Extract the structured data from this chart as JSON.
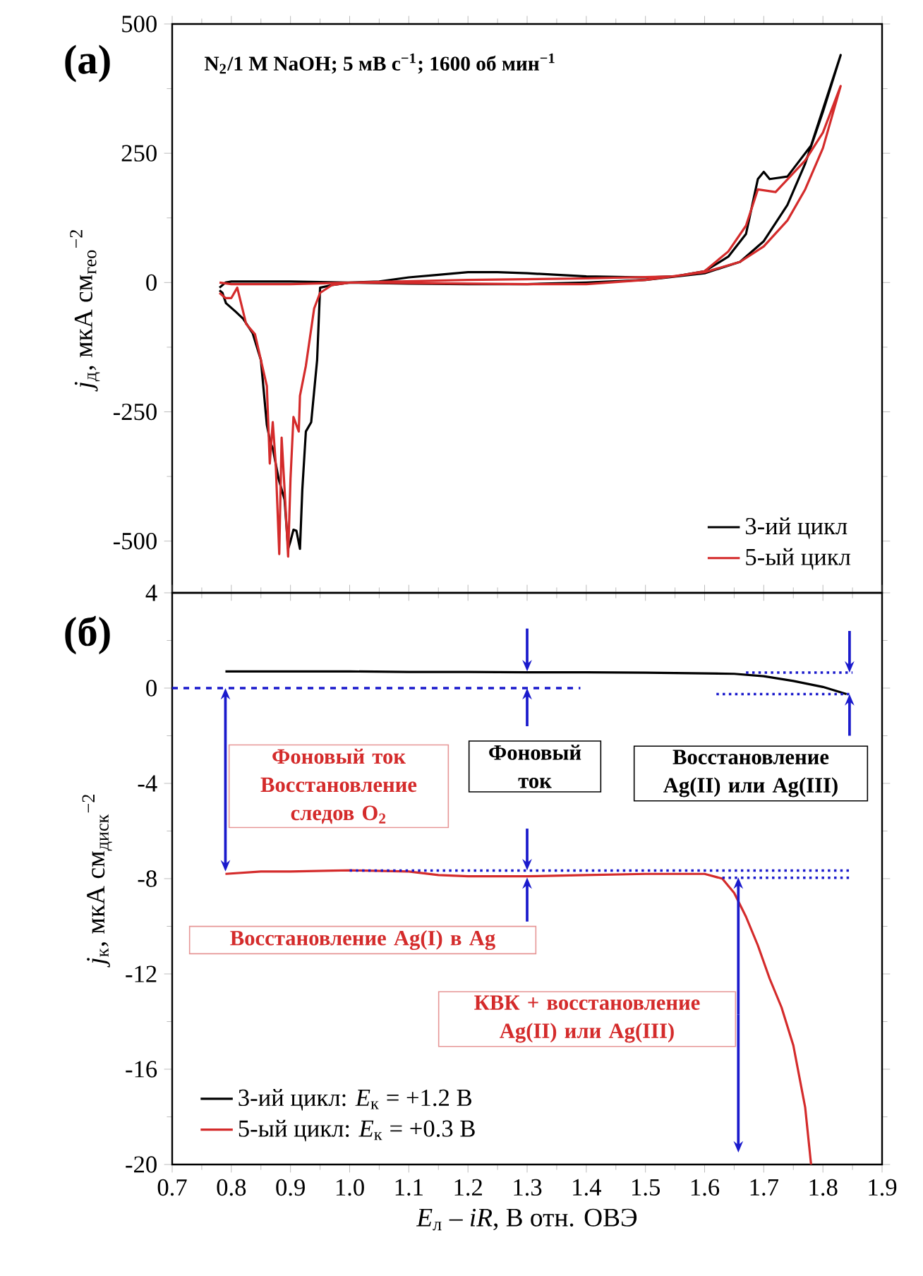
{
  "chart_data": [
    {
      "type": "line",
      "ylabel": "*j*$_{д}$, мкА см$_{гео}$$^{−2}$",
      "xlim": [
        0.7,
        1.9
      ],
      "ylim": [
        -600,
        500
      ],
      "tick_labels": "y",
      "xticks": [
        0.7,
        0.8,
        0.9,
        1.0,
        1.1,
        1.2,
        1.3,
        1.4,
        1.5,
        1.6,
        1.7,
        1.8,
        1.9
      ],
      "yticks": [
        500,
        250,
        0,
        -250,
        -500
      ],
      "legend": "bottom right",
      "annotations": [
        "(a)",
        "N$_{2}$/1 M NaOH; 5 мВ с$^{−1}$; 1600 об мин$^{−1}$"
      ],
      "series": [
        {
          "name": "3-ий цикл",
          "color": "#000000",
          "x": [
            0.78,
            0.79,
            0.8,
            0.9,
            1.0,
            1.05,
            1.1,
            1.15,
            1.2,
            1.25,
            1.3,
            1.35,
            1.4,
            1.5,
            1.55,
            1.6,
            1.64,
            1.67,
            1.69,
            1.7,
            1.71,
            1.74,
            1.78,
            1.83,
            1.8,
            1.77,
            1.74,
            1.7,
            1.66,
            1.6,
            1.5,
            1.4,
            1.3,
            1.2,
            1.1,
            1.0,
            0.97,
            0.95,
            0.945,
            0.935,
            0.926,
            0.92,
            0.916,
            0.91,
            0.905,
            0.9,
            0.896,
            0.89,
            0.88,
            0.87,
            0.866,
            0.86,
            0.85,
            0.836,
            0.82,
            0.807,
            0.791,
            0.785,
            0.78
          ],
          "values": [
            -10,
            0,
            2,
            2,
            0,
            2,
            10,
            15,
            20,
            20,
            18,
            15,
            12,
            10,
            12,
            22,
            50,
            94,
            200,
            214,
            200,
            205,
            265,
            440,
            330,
            230,
            150,
            80,
            40,
            18,
            5,
            0,
            -3,
            -3,
            -2,
            0,
            -5,
            -10,
            -150,
            -270,
            -288,
            -400,
            -515,
            -480,
            -478,
            -500,
            -515,
            -420,
            -380,
            -320,
            -310,
            -275,
            -150,
            -98,
            -70,
            -56,
            -40,
            -20,
            -15
          ]
        },
        {
          "name": "5-ый цикл",
          "color": "#d42b2b",
          "x": [
            0.78,
            0.8,
            0.9,
            1.0,
            1.2,
            1.4,
            1.55,
            1.6,
            1.64,
            1.67,
            1.69,
            1.72,
            1.77,
            1.8,
            1.83,
            1.8,
            1.77,
            1.74,
            1.7,
            1.66,
            1.6,
            1.5,
            1.4,
            1.3,
            1.0,
            0.97,
            0.95,
            0.94,
            0.926,
            0.916,
            0.914,
            0.905,
            0.9,
            0.896,
            0.89,
            0.885,
            0.881,
            0.875,
            0.87,
            0.865,
            0.86,
            0.85,
            0.84,
            0.825,
            0.81,
            0.8,
            0.79,
            0.78
          ],
          "values": [
            0,
            -3,
            -3,
            0,
            5,
            8,
            12,
            22,
            60,
            110,
            180,
            175,
            236,
            290,
            380,
            260,
            180,
            120,
            70,
            40,
            20,
            5,
            -3,
            -3,
            0,
            -5,
            -20,
            -50,
            -161,
            -219,
            -288,
            -260,
            -380,
            -530,
            -400,
            -300,
            -525,
            -350,
            -270,
            -350,
            -200,
            -150,
            -100,
            -80,
            -10,
            -30,
            -30,
            -20
          ]
        }
      ]
    },
    {
      "type": "line",
      "xlabel": "*E*$_{л}$ – *iR*, В отн. ОВЭ",
      "ylabel": "*j*$_{к}$, мкА см$_{диск}$$^{−2}$",
      "xlim": [
        0.7,
        1.9
      ],
      "ylim": [
        -20,
        4
      ],
      "xticks": [
        {
          "value": 0.7,
          "label": "0.7"
        },
        {
          "value": 0.8,
          "label": "0.8"
        },
        {
          "value": 0.9,
          "label": "0.9"
        },
        {
          "value": 1.0,
          "label": "1.0"
        },
        {
          "value": 1.1,
          "label": "1.1"
        },
        {
          "value": 1.2,
          "label": "1.2"
        },
        {
          "value": 1.3,
          "label": "1.3"
        },
        {
          "value": 1.4,
          "label": "1.4"
        },
        {
          "value": 1.5,
          "label": "1.5"
        },
        {
          "value": 1.6,
          "label": "1.6"
        },
        {
          "value": 1.7,
          "label": "1.7"
        },
        {
          "value": 1.8,
          "label": "1.8"
        },
        {
          "value": 1.9,
          "label": "1.9"
        }
      ],
      "yticks": [
        4,
        0,
        -4,
        -8,
        -12,
        -16,
        -20
      ],
      "legend": "bottom left",
      "annotations": [
        "(б)",
        {
          "text": "Фоновый ток Восстановление следов O$_{2}$",
          "x": 0.79,
          "y": -7.7
        },
        {
          "text": "Фоновый ток",
          "x": 1.3,
          "y": 0
        },
        {
          "text": "Восстановление Ag(II) или Ag(III)",
          "x": 1.845,
          "y": -0.25
        },
        {
          "text": "Восстановление Ag(I) в Ag",
          "x": 1.3,
          "y": -7.9
        },
        "КВК + восстановление Ag(II) или Ag(III)"
      ],
      "series": [
        {
          "name": "3-ий цикл: *E*$_{к}$ = +1.2 В",
          "color": "#000000",
          "x": [
            0.79,
            0.9,
            1.0,
            1.1,
            1.2,
            1.3,
            1.4,
            1.5,
            1.6,
            1.65,
            1.7,
            1.75,
            1.8,
            1.84
          ],
          "values": [
            0.7,
            0.7,
            0.7,
            0.68,
            0.68,
            0.66,
            0.66,
            0.65,
            0.62,
            0.6,
            0.5,
            0.3,
            0.05,
            -0.25
          ]
        },
        {
          "name": "5-ый цикл: *E*$_{к}$ = +0.3 В",
          "color": "#d42b2b",
          "x": [
            0.79,
            0.85,
            0.9,
            1.0,
            1.1,
            1.15,
            1.2,
            1.3,
            1.4,
            1.5,
            1.6,
            1.63,
            1.65,
            1.67,
            1.69,
            1.71,
            1.73,
            1.75,
            1.77,
            1.78
          ],
          "values": [
            -7.8,
            -7.7,
            -7.7,
            -7.65,
            -7.7,
            -7.85,
            -7.9,
            -7.9,
            -7.85,
            -7.8,
            -7.8,
            -8.0,
            -8.6,
            -9.6,
            -10.8,
            -12.2,
            -13.4,
            -15,
            -17.6,
            -20
          ]
        },
        {
          "color": "#1a1acc",
          "line_style": "dashed",
          "x": [
            0.7,
            1.39
          ],
          "values": [
            0,
            0
          ]
        },
        {
          "color": "#1a1acc",
          "line_style": "dotted",
          "x": [
            1.67,
            1.85
          ],
          "values": [
            0.65,
            0.65
          ]
        },
        {
          "color": "#1a1acc",
          "line_style": "dotted",
          "x": [
            1.62,
            1.85
          ],
          "values": [
            -0.25,
            -0.25
          ]
        },
        {
          "color": "#1a1acc",
          "line_style": "dotted",
          "x": [
            1.0,
            1.85
          ],
          "values": [
            -7.66,
            -7.66
          ]
        },
        {
          "color": "#1a1acc",
          "line_style": "dotted",
          "x": [
            1.63,
            1.85
          ],
          "values": [
            -7.96,
            -7.96
          ]
        }
      ]
    }
  ]
}
